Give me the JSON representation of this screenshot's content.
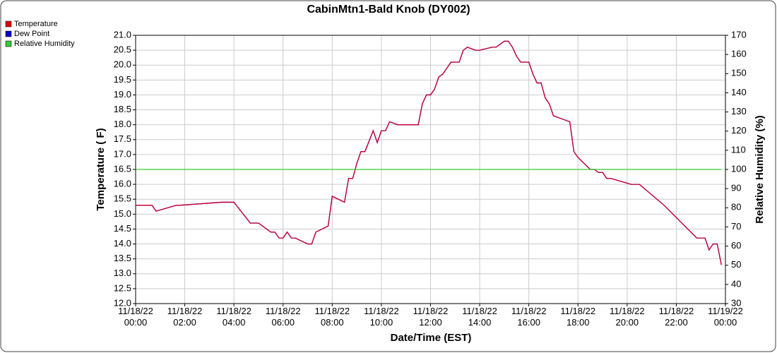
{
  "chart_data": {
    "type": "line",
    "title": "CabinMtn1-Bald Knob (DY002)",
    "x_label": "Date/Time (EST)",
    "y_label": "Temperature ( F)",
    "y2_label": "Relative Humidity (%)",
    "x": [
      "11/18/22 00:00",
      "11/18/22 00:40",
      "11/18/22 00:50",
      "11/18/22 01:40",
      "11/18/22 01:50",
      "11/18/22 03:30",
      "11/18/22 04:00",
      "11/18/22 04:40",
      "11/18/22 05:00",
      "11/18/22 05:30",
      "11/18/22 05:40",
      "11/18/22 05:50",
      "11/18/22 06:00",
      "11/18/22 06:10",
      "11/18/22 06:20",
      "11/18/22 06:30",
      "11/18/22 07:00",
      "11/18/22 07:10",
      "11/18/22 07:20",
      "11/18/22 07:50",
      "11/18/22 08:00",
      "11/18/22 08:30",
      "11/18/22 08:40",
      "11/18/22 08:50",
      "11/18/22 09:00",
      "11/18/22 09:10",
      "11/18/22 09:20",
      "11/18/22 09:40",
      "11/18/22 09:50",
      "11/18/22 10:00",
      "11/18/22 10:10",
      "11/18/22 10:20",
      "11/18/22 10:40",
      "11/18/22 11:30",
      "11/18/22 11:40",
      "11/18/22 11:50",
      "11/18/22 12:00",
      "11/18/22 12:10",
      "11/18/22 12:20",
      "11/18/22 12:30",
      "11/18/22 12:50",
      "11/18/22 13:10",
      "11/18/22 13:20",
      "11/18/22 13:30",
      "11/18/22 13:50",
      "11/18/22 14:00",
      "11/18/22 14:30",
      "11/18/22 14:40",
      "11/18/22 15:00",
      "11/18/22 15:10",
      "11/18/22 15:20",
      "11/18/22 15:30",
      "11/18/22 15:40",
      "11/18/22 16:00",
      "11/18/22 16:10",
      "11/18/22 16:20",
      "11/18/22 16:30",
      "11/18/22 16:40",
      "11/18/22 16:50",
      "11/18/22 17:00",
      "11/18/22 17:40",
      "11/18/22 17:50",
      "11/18/22 18:00",
      "11/18/22 18:30",
      "11/18/22 18:40",
      "11/18/22 18:50",
      "11/18/22 19:00",
      "11/18/22 19:10",
      "11/18/22 19:20",
      "11/18/22 20:10",
      "11/18/22 20:30",
      "11/18/22 21:30",
      "11/18/22 22:50",
      "11/18/22 23:10",
      "11/18/22 23:20",
      "11/18/22 23:30",
      "11/18/22 23:40",
      "11/18/22 23:50"
    ],
    "series": [
      {
        "name": "Dew Point",
        "color": "#0000cc",
        "values": [
          15.3,
          15.3,
          15.1,
          15.3,
          15.3,
          15.4,
          15.4,
          14.7,
          14.7,
          14.4,
          14.4,
          14.2,
          14.2,
          14.4,
          14.2,
          14.2,
          14.0,
          14.0,
          14.4,
          14.6,
          15.6,
          15.4,
          16.2,
          16.2,
          16.7,
          17.1,
          17.1,
          17.8,
          17.4,
          17.8,
          17.8,
          18.1,
          18.0,
          18.0,
          18.7,
          19.0,
          19.0,
          19.2,
          19.6,
          19.7,
          20.1,
          20.1,
          20.5,
          20.6,
          20.5,
          20.5,
          20.6,
          20.6,
          20.8,
          20.8,
          20.6,
          20.3,
          20.1,
          20.1,
          19.7,
          19.4,
          19.4,
          18.9,
          18.7,
          18.3,
          18.1,
          17.1,
          16.9,
          16.5,
          16.5,
          16.4,
          16.4,
          16.2,
          16.2,
          16.0,
          16.0,
          15.3,
          14.2,
          14.2,
          13.8,
          14.0,
          14.0,
          13.3
        ]
      },
      {
        "name": "Temperature",
        "color": "#cc0033",
        "values": [
          15.3,
          15.3,
          15.1,
          15.3,
          15.3,
          15.4,
          15.4,
          14.7,
          14.7,
          14.4,
          14.4,
          14.2,
          14.2,
          14.4,
          14.2,
          14.2,
          14.0,
          14.0,
          14.4,
          14.6,
          15.6,
          15.4,
          16.2,
          16.2,
          16.7,
          17.1,
          17.1,
          17.8,
          17.4,
          17.8,
          17.8,
          18.1,
          18.0,
          18.0,
          18.7,
          19.0,
          19.0,
          19.2,
          19.6,
          19.7,
          20.1,
          20.1,
          20.5,
          20.6,
          20.5,
          20.5,
          20.6,
          20.6,
          20.8,
          20.8,
          20.6,
          20.3,
          20.1,
          20.1,
          19.7,
          19.4,
          19.4,
          18.9,
          18.7,
          18.3,
          18.1,
          17.1,
          16.9,
          16.5,
          16.5,
          16.4,
          16.4,
          16.2,
          16.2,
          16.0,
          16.0,
          15.3,
          14.2,
          14.2,
          13.8,
          14.0,
          14.0,
          13.3
        ]
      },
      {
        "name": "Relative Humidity",
        "color": "#33cc33",
        "axis": "y2",
        "values": [
          100,
          100,
          100,
          100,
          100,
          100,
          100,
          100,
          100,
          100,
          100,
          100,
          100,
          100,
          100,
          100,
          100,
          100,
          100,
          100,
          100,
          100,
          100,
          100,
          100,
          100,
          100,
          100,
          100,
          100,
          100,
          100,
          100,
          100,
          100,
          100,
          100,
          100,
          100,
          100,
          100,
          100,
          100,
          100,
          100,
          100,
          100,
          100,
          100,
          100,
          100,
          100,
          100,
          100,
          100,
          100,
          100,
          100,
          100,
          100,
          100,
          100,
          100,
          100,
          100,
          100,
          100,
          100,
          100,
          100,
          100,
          100,
          100,
          100,
          100,
          100,
          100,
          100
        ]
      }
    ],
    "legend_items": [
      {
        "name": "Temperature",
        "color": "#e00000"
      },
      {
        "name": "Dew Point",
        "color": "#0000cc"
      },
      {
        "name": "Relative Humidity",
        "color": "#33cc33"
      }
    ],
    "xlim": [
      "11/18/22 00:00",
      "11/19/22 00:00"
    ],
    "xticks": [
      "11/18/22 00:00",
      "11/18/22 02:00",
      "11/18/22 04:00",
      "11/18/22 06:00",
      "11/18/22 08:00",
      "11/18/22 10:00",
      "11/18/22 12:00",
      "11/18/22 14:00",
      "11/18/22 16:00",
      "11/18/22 18:00",
      "11/18/22 20:00",
      "11/18/22 22:00",
      "11/19/22 00:00"
    ],
    "ylim": [
      12,
      21
    ],
    "yticks": [
      {
        "value": 12,
        "label": "12.0"
      },
      12.5,
      {
        "value": 13,
        "label": "13.0"
      },
      13.5,
      {
        "value": 14,
        "label": "14.0"
      },
      14.5,
      {
        "value": 15,
        "label": "15.0"
      },
      15.5,
      {
        "value": 16,
        "label": "16.0"
      },
      16.5,
      {
        "value": 17,
        "label": "17.0"
      },
      17.5,
      {
        "value": 18,
        "label": "18.0"
      },
      18.5,
      {
        "value": 19,
        "label": "19.0"
      },
      19.5,
      {
        "value": 20,
        "label": "20.0"
      },
      20.5,
      {
        "value": 21,
        "label": "21.0"
      }
    ],
    "y2lim": [
      30,
      170
    ],
    "y2ticks": [
      30,
      40,
      50,
      60,
      70,
      80,
      90,
      100,
      110,
      120,
      130,
      140,
      150,
      160,
      170
    ],
    "grid": true
  }
}
